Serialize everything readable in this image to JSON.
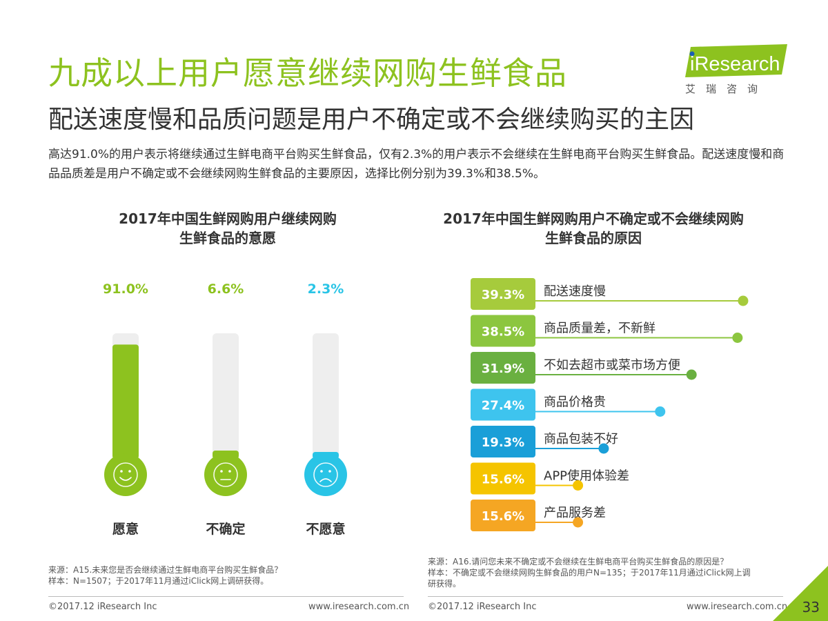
{
  "header": {
    "title": "九成以上用户愿意继续网购生鲜食品",
    "subtitle": "配送速度慢和品质问题是用户不确定或不会继续购买的主因",
    "description": "高达91.0%的用户表示将继续通过生鲜电商平台购买生鲜食品，仅有2.3%的用户表示不会继续在生鲜电商平台购买生鲜食品。配送速度慢和商品品质差是用户不确定或不会继续网购生鲜食品的主要原因，选择比例分别为39.3%和38.5%。"
  },
  "logo": {
    "text": "iResearch",
    "cn": "艾瑞咨询",
    "color": "#8dc21f"
  },
  "colors": {
    "green": "#8dc21f",
    "teal": "#29c4e6",
    "track": "#eeeeee"
  },
  "chart_data": [
    {
      "type": "bar",
      "title_line1": "2017年中国生鲜网购用户继续网购",
      "title_line2": "生鲜食品的意愿",
      "categories": [
        "愿意",
        "不确定",
        "不愿意"
      ],
      "values": [
        91.0,
        6.6,
        2.3
      ],
      "value_labels": [
        "91.0%",
        "6.6%",
        "2.3%"
      ],
      "colors": [
        "#8dc21f",
        "#8dc21f",
        "#29c4e6"
      ],
      "faces": [
        "smile-icon",
        "neutral-icon",
        "sad-icon"
      ],
      "ylim": [
        0,
        100
      ],
      "grid": false,
      "source_line1": "来源：A15.未来您是否会继续通过生鲜电商平台购买生鲜食品？",
      "source_line2": "样本：N=1507；于2017年11月通过iClick网上调研获得。"
    },
    {
      "type": "bar",
      "orientation": "horizontal",
      "title_line1": "2017年中国生鲜网购用户不确定或不会继续网购",
      "title_line2": "生鲜食品的原因",
      "categories": [
        "配送速度慢",
        "商品质量差，不新鲜",
        "不如去超市或菜市场方便",
        "商品价格贵",
        "商品包装不好",
        "APP使用体验差",
        "产品服务差"
      ],
      "values": [
        39.3,
        38.5,
        31.9,
        27.4,
        19.3,
        15.6,
        15.6
      ],
      "value_labels": [
        "39.3%",
        "38.5%",
        "31.9%",
        "27.4%",
        "19.3%",
        "15.6%",
        "15.6%"
      ],
      "colors": [
        "#a6cb3c",
        "#8cc63f",
        "#6ab040",
        "#3ec4ee",
        "#1a9fd8",
        "#f5c400",
        "#f5a623"
      ],
      "xlim": [
        0,
        40
      ],
      "grid": false,
      "source_line1": "来源：A16.请问您未来不确定或不会继续在生鲜电商平台购买生鲜食品的原因是？",
      "source_line2": "样本：不确定或不会继续网购生鲜食品的用户N=135；于2017年11月通过iClick网上调",
      "source_line3": "研获得。"
    }
  ],
  "footer": {
    "copyright_left": "©2017.12 iResearch Inc",
    "url_left": "www.iresearch.com.cn",
    "copyright_right": "©2017.12 iResearch Inc",
    "url_right": "www.iresearch.com.cn",
    "page_number": "33"
  }
}
